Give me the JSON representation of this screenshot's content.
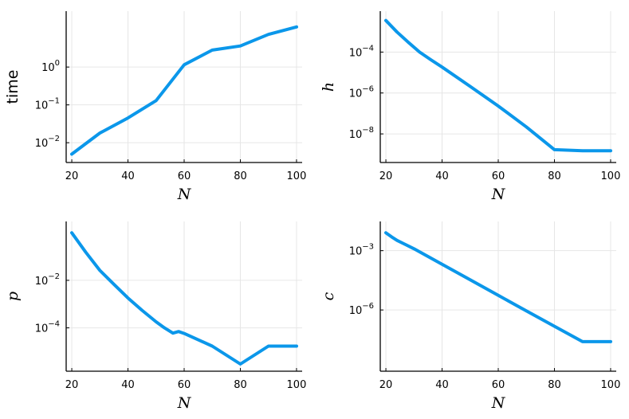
{
  "colors": {
    "series": "#0b97ea",
    "grid": "#e6e6e6",
    "axis": "#000000"
  },
  "chart_data": [
    {
      "type": "line",
      "xlabel": "N",
      "ylabel": "time",
      "ylabel_style": "text",
      "yscale": "log",
      "xlim": [
        18,
        102
      ],
      "ylim": [
        0.003,
        30
      ],
      "grid": true,
      "legend": "none",
      "xticks": [
        20,
        40,
        60,
        80,
        100
      ],
      "xtick_labels": [
        "20",
        "40",
        "60",
        "80",
        "100"
      ],
      "yticks": [
        {
          "value": 0.01,
          "base": "10",
          "exp": "−2"
        },
        {
          "value": 0.1,
          "base": "10",
          "exp": "−1"
        },
        {
          "value": 1,
          "base": "10",
          "exp": "0"
        }
      ],
      "series": [
        {
          "x": [
            20,
            30,
            40,
            50,
            60,
            70,
            80,
            90,
            100
          ],
          "y": [
            0.005,
            0.018,
            0.045,
            0.13,
            1.15,
            2.8,
            3.6,
            7.3,
            11.5
          ]
        }
      ]
    },
    {
      "type": "line",
      "xlabel": "N",
      "ylabel": "h",
      "ylabel_style": "math",
      "yscale": "log",
      "xlim": [
        18,
        102
      ],
      "ylim": [
        4e-10,
        0.01
      ],
      "grid": true,
      "legend": "none",
      "xticks": [
        20,
        40,
        60,
        80,
        100
      ],
      "xtick_labels": [
        "20",
        "40",
        "60",
        "80",
        "100"
      ],
      "yticks": [
        {
          "value": 1e-08,
          "base": "10",
          "exp": "−8"
        },
        {
          "value": 1e-06,
          "base": "10",
          "exp": "−6"
        },
        {
          "value": 0.0001,
          "base": "10",
          "exp": "−4"
        }
      ],
      "series": [
        {
          "x": [
            20,
            24,
            28,
            32,
            36,
            40,
            50,
            60,
            70,
            80,
            90,
            100
          ],
          "y": [
            0.0035,
            0.00095,
            0.0003,
            0.0001,
            4.2e-05,
            1.85e-05,
            2.1e-06,
            2.3e-07,
            2.2e-08,
            1.7e-09,
            1.5e-09,
            1.5e-09
          ]
        }
      ]
    },
    {
      "type": "line",
      "xlabel": "N",
      "ylabel": "p",
      "ylabel_style": "math",
      "yscale": "log",
      "xlim": [
        18,
        102
      ],
      "ylim": [
        1.5e-06,
        3
      ],
      "grid": true,
      "legend": "none",
      "xticks": [
        20,
        40,
        60,
        80,
        100
      ],
      "xtick_labels": [
        "20",
        "40",
        "60",
        "80",
        "100"
      ],
      "yticks": [
        {
          "value": 0.0001,
          "base": "10",
          "exp": "−4"
        },
        {
          "value": 0.01,
          "base": "10",
          "exp": "−2"
        }
      ],
      "series": [
        {
          "x": [
            20,
            25,
            30,
            35,
            40,
            45,
            50,
            53,
            56,
            58,
            60,
            70,
            80,
            90,
            100
          ],
          "y": [
            1.0,
            0.15,
            0.026,
            0.0068,
            0.0018,
            0.00055,
            0.00018,
            0.0001,
            6e-05,
            7e-05,
            5.8e-05,
            1.7e-05,
            3e-06,
            1.7e-05,
            1.7e-05
          ]
        }
      ]
    },
    {
      "type": "line",
      "xlabel": "N",
      "ylabel": "c",
      "ylabel_style": "math",
      "yscale": "log",
      "xlim": [
        18,
        102
      ],
      "ylim": [
        8e-10,
        0.03
      ],
      "grid": true,
      "legend": "none",
      "xticks": [
        20,
        40,
        60,
        80,
        100
      ],
      "xtick_labels": [
        "20",
        "40",
        "60",
        "80",
        "100"
      ],
      "yticks": [
        {
          "value": 1e-06,
          "base": "10",
          "exp": "−6"
        },
        {
          "value": 0.001,
          "base": "10",
          "exp": "−3"
        }
      ],
      "series": [
        {
          "x": [
            20,
            22,
            24,
            30,
            40,
            50,
            60,
            70,
            80,
            90,
            100
          ],
          "y": [
            0.008,
            0.005,
            0.0033,
            0.00125,
            0.000205,
            3.35e-05,
            5.5e-06,
            9e-07,
            1.5e-07,
            2.5e-08,
            2.5e-08
          ]
        }
      ]
    }
  ]
}
